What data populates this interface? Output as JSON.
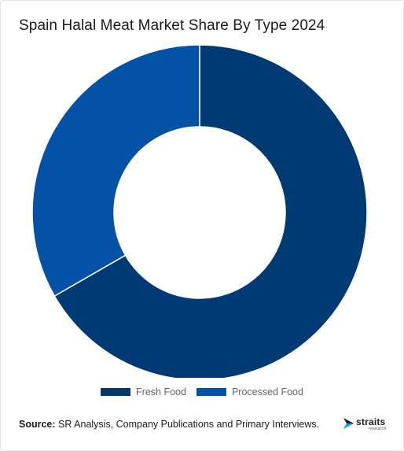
{
  "title": "Spain Halal Meat Market Share By Type 2024",
  "chart_data": {
    "type": "pie",
    "variant": "donut",
    "title": "Spain Halal Meat Market Share By Type 2024",
    "categories": [
      "Fresh Food",
      "Processed Food"
    ],
    "values": [
      66.7,
      33.3
    ],
    "colors": [
      "#003a75",
      "#0352a5"
    ],
    "legend": "bottom"
  },
  "legend": {
    "items": [
      {
        "label": "Fresh Food",
        "color": "#003a75"
      },
      {
        "label": "Processed Food",
        "color": "#0352a5"
      }
    ]
  },
  "source": {
    "label": "Source:",
    "text": " SR Analysis, Company Publications and Primary Interviews."
  },
  "logo": {
    "name": "straits",
    "sub": "research",
    "icon": "straits-arrow-icon"
  }
}
